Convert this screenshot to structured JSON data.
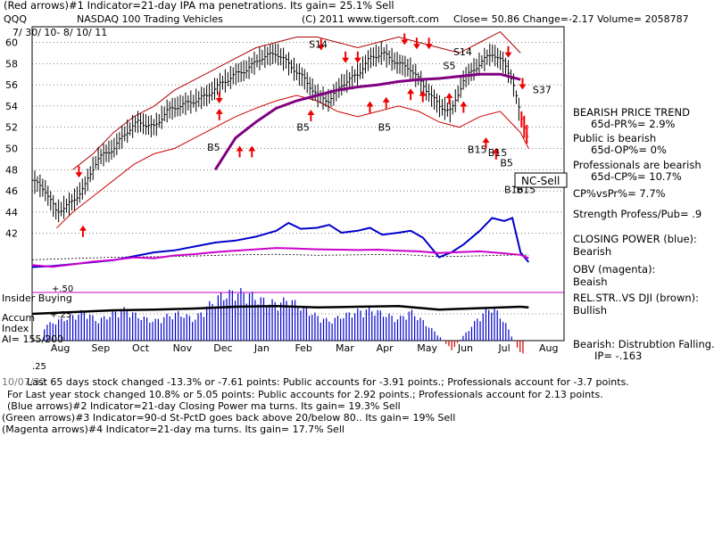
{
  "header": {
    "line1": "(Red arrows)#1 Indicator=21-day IPA ma penetrations. Its gain= 25.1% Sell",
    "symbol": "QQQ",
    "name": "NASDAQ 100 Trading Vehicles",
    "copyright": "(C) 2011 www.tigersoft.com",
    "quote": "Close=  50.86  Change=-2.17 Volume= 2058787",
    "daterange": "7/ 30/ 10-  8/ 10/ 11"
  },
  "chart_data": {
    "type": "line",
    "xlabel": "",
    "ylabel": "",
    "months": [
      "Aug",
      "Sep",
      "Oct",
      "Nov",
      "Dec",
      "Jan",
      "Feb",
      "Mar",
      "Apr",
      "May",
      "Jun",
      "Jul",
      "Aug"
    ],
    "month_positions": [
      0.15,
      1.15,
      2.15,
      3.15,
      4.15,
      5.15,
      6.15,
      7.15,
      8.15,
      9.15,
      10.15,
      11.15,
      12.15
    ],
    "price_axis": {
      "ylim": [
        40,
        61
      ],
      "ticks": [
        "60",
        "58",
        "56",
        "54",
        "52",
        "50",
        "48",
        "46",
        "44",
        "42"
      ]
    },
    "accum_labels": {
      "top": "+.50",
      "mid": "+.25",
      "bottom": ".25",
      "insider": "Insider Buying"
    },
    "price_months": [
      0,
      0.3,
      0.6,
      1,
      1.3,
      1.6,
      2,
      2.3,
      2.6,
      3,
      3.3,
      3.6,
      4,
      4.3,
      4.6,
      5,
      5.3,
      5.6,
      6,
      6.3,
      6.5,
      6.7,
      7,
      7.3,
      7.6,
      8,
      8.3,
      8.6,
      9,
      9.3,
      9.6,
      10,
      10.3,
      10.6,
      11,
      11.3,
      11.6,
      11.8,
      12,
      12.2
    ],
    "price_values": [
      47,
      46.2,
      44,
      45,
      46.5,
      49,
      50,
      51.5,
      52.5,
      52,
      53.5,
      54,
      54.5,
      55,
      56,
      57,
      57.5,
      58.5,
      59,
      58,
      57.2,
      56.5,
      55,
      54.5,
      56,
      57,
      58.5,
      59,
      58,
      57.5,
      56,
      54,
      53.5,
      56.5,
      58,
      59,
      58,
      56.5,
      53,
      50.86
    ],
    "price_ma_months": [
      4.5,
      5,
      5.5,
      6,
      6.5,
      7,
      7.5,
      8,
      8.5,
      9,
      9.5,
      10,
      10.5,
      11,
      11.5,
      12
    ],
    "price_ma_values": [
      48,
      51,
      52.5,
      53.8,
      54.5,
      55,
      55.5,
      55.8,
      56,
      56.3,
      56.5,
      56.6,
      56.8,
      57,
      57,
      56.5
    ],
    "upper_band_months": [
      1,
      1.5,
      2,
      2.5,
      3,
      3.5,
      4,
      4.5,
      5,
      5.5,
      6,
      6.5,
      7,
      7.5,
      8,
      8.5,
      9,
      9.5,
      10,
      10.5,
      11,
      11.5,
      12
    ],
    "upper_band_values": [
      48,
      49.5,
      51.5,
      53,
      54,
      55.5,
      56.5,
      57.5,
      58.5,
      59.5,
      60,
      60.5,
      60.5,
      60,
      59.5,
      60,
      60.5,
      60,
      59.5,
      59,
      60,
      61,
      59
    ],
    "lower_band_months": [
      0.6,
      1,
      1.5,
      2,
      2.5,
      3,
      3.5,
      4,
      4.5,
      5,
      5.5,
      6,
      6.5,
      7,
      7.5,
      8,
      8.5,
      9,
      9.5,
      10,
      10.5,
      11,
      11.5,
      12,
      12.2
    ],
    "lower_band_values": [
      42.5,
      44,
      45.5,
      47,
      48.5,
      49.5,
      50,
      51,
      52,
      53,
      53.8,
      54.5,
      55,
      54.5,
      53.5,
      53,
      53.5,
      54,
      53.5,
      52.5,
      52,
      53,
      53.5,
      51.5,
      50
    ],
    "closing_power_months": [
      0,
      0.5,
      1,
      1.5,
      2,
      2.5,
      3,
      3.5,
      4,
      4.5,
      5,
      5.5,
      6,
      6.3,
      6.6,
      7,
      7.3,
      7.6,
      8,
      8.3,
      8.6,
      9,
      9.3,
      9.6,
      10,
      10.3,
      10.6,
      11,
      11.3,
      11.6,
      11.8,
      12,
      12.2
    ],
    "closing_power_values": [
      0.05,
      0.06,
      0.08,
      0.1,
      0.12,
      0.16,
      0.2,
      0.22,
      0.26,
      0.3,
      0.32,
      0.36,
      0.42,
      0.5,
      0.44,
      0.45,
      0.48,
      0.4,
      0.42,
      0.45,
      0.38,
      0.4,
      0.42,
      0.35,
      0.15,
      0.2,
      0.28,
      0.42,
      0.55,
      0.52,
      0.55,
      0.2,
      0.1
    ],
    "obv_months": [
      0,
      0.5,
      1,
      1.5,
      2,
      2.5,
      3,
      3.5,
      4,
      4.5,
      5,
      5.5,
      6,
      6.5,
      7,
      7.5,
      8,
      8.5,
      9,
      9.5,
      10,
      10.5,
      11,
      11.5,
      12,
      12.2
    ],
    "obv_values": [
      0.2,
      0.15,
      0.22,
      0.3,
      0.35,
      0.42,
      0.4,
      0.48,
      0.52,
      0.58,
      0.62,
      0.66,
      0.7,
      0.68,
      0.66,
      0.65,
      0.64,
      0.65,
      0.62,
      0.6,
      0.55,
      0.58,
      0.6,
      0.55,
      0.5,
      0.4
    ],
    "relstr_months": [
      0,
      1,
      2,
      3,
      4,
      5,
      6,
      7,
      8,
      9,
      10,
      11,
      12,
      12.2
    ],
    "relstr_values": [
      0.5,
      0.55,
      0.6,
      0.62,
      0.65,
      0.7,
      0.72,
      0.68,
      0.7,
      0.72,
      0.62,
      0.66,
      0.7,
      0.68
    ],
    "accum_months": [
      0.3,
      0.6,
      1,
      1.3,
      1.6,
      2,
      2.3,
      2.6,
      3,
      3.3,
      3.6,
      4,
      4.3,
      4.6,
      5,
      5.3,
      5.6,
      6,
      6.3,
      6.6,
      7,
      7.3,
      7.6,
      8,
      8.3,
      8.6,
      9,
      9.3,
      9.6,
      10,
      10.3,
      10.6,
      11,
      11.3,
      11.6,
      11.9,
      12.1
    ],
    "accum_values": [
      0.15,
      0.2,
      0.25,
      0.3,
      0.2,
      0.28,
      0.32,
      0.25,
      0.2,
      0.25,
      0.28,
      0.22,
      0.35,
      0.45,
      0.5,
      0.48,
      0.42,
      0.38,
      0.42,
      0.35,
      0.25,
      0.2,
      0.25,
      0.3,
      0.32,
      0.28,
      0.22,
      0.3,
      0.2,
      0.05,
      -0.1,
      0.05,
      0.25,
      0.35,
      0.2,
      -0.05,
      -0.2
    ]
  },
  "signals": [
    {
      "label": "S14",
      "m": 6.8,
      "v": 59.5
    },
    {
      "label": "S14",
      "m": 10.35,
      "v": 58.8
    },
    {
      "label": "S5",
      "m": 10.1,
      "v": 57.5
    },
    {
      "label": "S37",
      "m": 12.3,
      "v": 55.2
    },
    {
      "label": "B5",
      "m": 4.3,
      "v": 49.8
    },
    {
      "label": "B5",
      "m": 6.5,
      "v": 51.7
    },
    {
      "label": "B5",
      "m": 8.5,
      "v": 51.7
    },
    {
      "label": "B15",
      "m": 10.7,
      "v": 49.6
    },
    {
      "label": "B15",
      "m": 11.2,
      "v": 49.3
    },
    {
      "label": "B5",
      "m": 11.5,
      "v": 48.3
    },
    {
      "label": "B16",
      "m": 11.6,
      "v": 45.8
    },
    {
      "label": "B15",
      "m": 11.9,
      "v": 45.8
    }
  ],
  "nc_sell": "NC-Sell",
  "panel": {
    "l1": "BEARISH PRICE TREND",
    "l2": "65d-PR%= 2.9%",
    "l3": "Public is bearish",
    "l4": "65d-OP%= 0%",
    "l5": "Professionals are bearish",
    "l6": "65d-CP%= 10.7%",
    "l7": "CP%vsPr%=  7.7%",
    "l8": "Strength Profess/Pub= .9",
    "l9": "CLOSING POWER (blue):",
    "l10": "Bearish",
    "l11": "OBV (magenta):",
    "l12": "Beaish",
    "l13": "REL.STR..VS DJI (brown):",
    "l14": "Bullish",
    "l15": "Bearish: Distrubtion Falling.",
    "l16": "IP= -.163"
  },
  "accum_side": {
    "a": "Accum",
    "b": "Index",
    "c": "AI= 155/200"
  },
  "footer": {
    "f1": "Last 65 days stock changed -13.3% or -7.61 points:  Public accounts for -3.91 points.;  Professionals account for -3.7 points.",
    "f2": "For Last year stock changed  10.8% or 5.05 points:  Public accounts for  2.92 points.;  Professionals account for  2.13 points.",
    "f3": "(Blue arrows)#2 Indicator=21-day Closing Power ma turns. Its gain= 19.3% Sell",
    "f4": "(Green arrows)#3 Indicator=90-d St-PctD goes back above 20/below 80.. Its gain= 19% Sell",
    "f5": "(Magenta arrows)#4 Indicator=21-day ma turns. Its gain= 17.7% Sell",
    "overlap": "10/07/32"
  }
}
